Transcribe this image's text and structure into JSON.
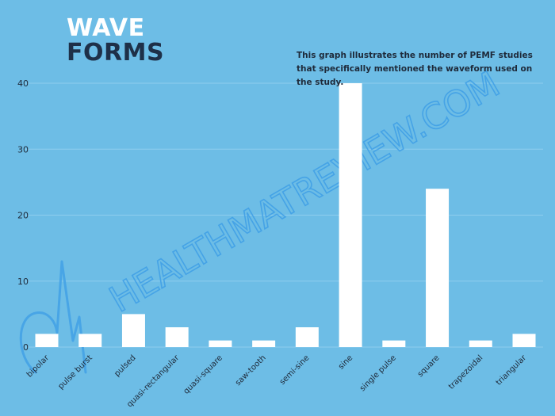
{
  "header": {
    "title_line1": "WAVE",
    "title_line2": "FORMS",
    "subtitle": "This graph illustrates the number of PEMF studies that specifically mentioned the waveform used on the study."
  },
  "watermark": {
    "text": "HEALTHMATREVIEW.COM",
    "icon": "heart-pulse-icon"
  },
  "colors": {
    "background": "#6dbde6",
    "bar": "#ffffff",
    "gridline": "#8fcdee",
    "axis_text": "#1e2a3a",
    "title_dark": "#1e3048",
    "watermark": "#3f9fe6"
  },
  "chart_data": {
    "type": "bar",
    "categories": [
      "bipolar",
      "pulse burst",
      "pulsed",
      "quasi-rectangular",
      "quasi-square",
      "saw-tooth",
      "semi-sine",
      "sine",
      "single pulse",
      "square",
      "trapezoidal",
      "triangular"
    ],
    "values": [
      2,
      2,
      5,
      3,
      1,
      1,
      3,
      40,
      1,
      24,
      1,
      2
    ],
    "yticks": [
      0,
      10,
      20,
      30,
      40
    ],
    "ylim": [
      0,
      40
    ],
    "grid": true,
    "legend": "none"
  }
}
